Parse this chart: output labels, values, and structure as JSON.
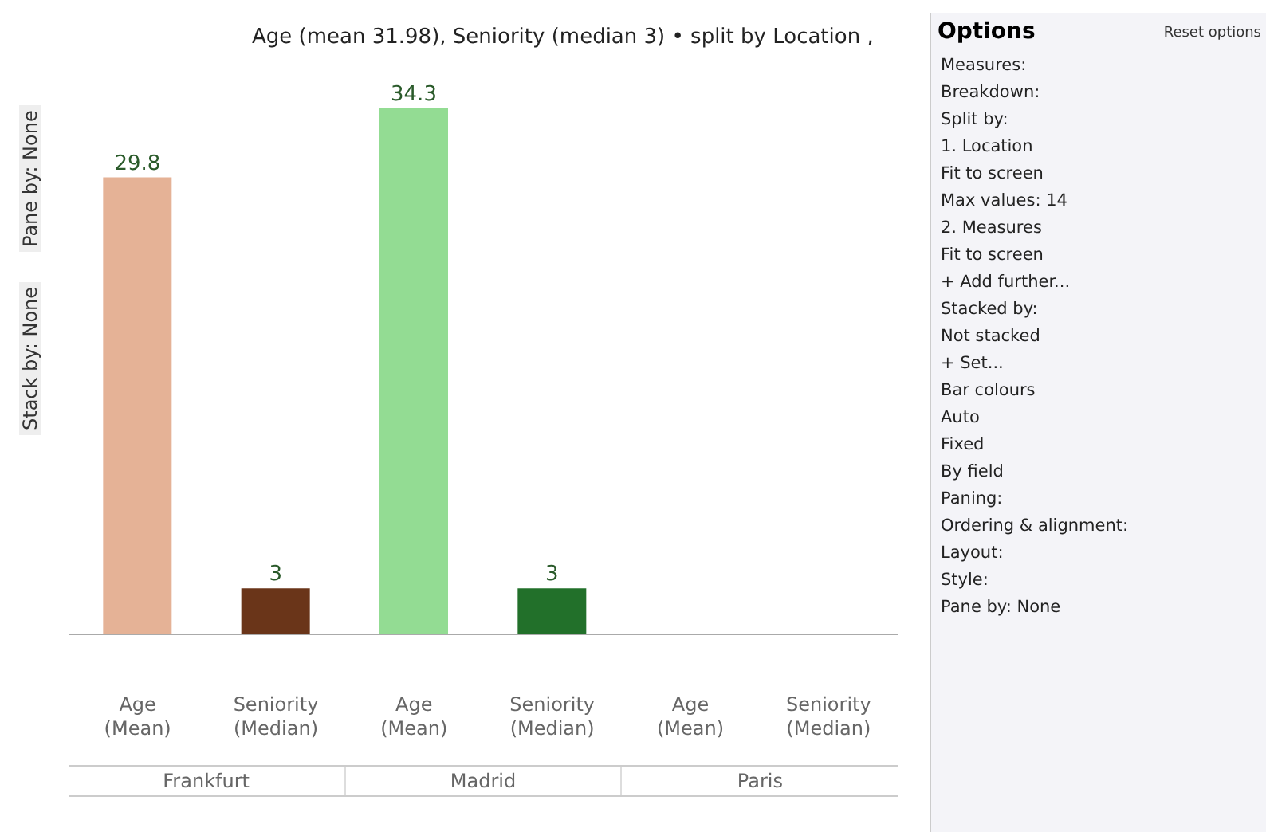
{
  "chart_data": [
    {
      "type": "bar",
      "title": "Age (mean 31.98), Seniority (median 3) • split by Location ,",
      "categories": [
        "Age (Mean)",
        "Seniority (Median)",
        "Age (Mean)",
        "Seniority (Median)",
        "Age (Mean)",
        "Seniority (Median)"
      ],
      "values": [
        29.8,
        3,
        34.3,
        3,
        null,
        null
      ],
      "colors": [
        "#e5b296",
        "#6a3519",
        "#93dc93",
        "#22702a",
        "#e5b296",
        "#6a3519"
      ],
      "data_labels": true,
      "annotations": [
        "Frankfurt",
        "Madrid",
        "Paris",
        "Pane by: None",
        "Stack by: None"
      ]
    },
    {
      "type": "other",
      "title": "Options",
      "annotations": [
        "Reset options",
        "Measures:",
        "Breakdown:",
        "Split by:",
        "1. Location",
        "Fit to screen",
        "Max values: 14",
        "2. Measures",
        "Fit to screen",
        "+ Add further...",
        "Stacked by:",
        "Not stacked",
        "+ Set...",
        "Bar colours",
        "Auto",
        "Fixed",
        "By field",
        "Paning:",
        "Ordering & alignment:",
        "Layout:",
        "Style:",
        "Pane by: None"
      ]
    }
  ]
}
